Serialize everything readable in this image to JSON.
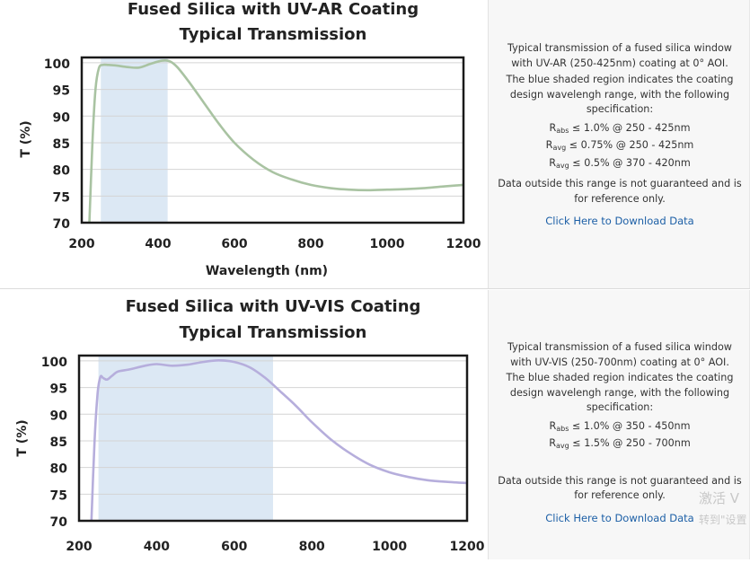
{
  "colors": {
    "curve1": "#a9c3a2",
    "curve2": "#b6aedc",
    "shade": "#dce8f4",
    "grid": "#d4d4d4",
    "link": "#1c5fa6"
  },
  "chart_data": [
    {
      "type": "line",
      "title": "Fused Silica with UV-AR Coating",
      "subtitle": "Typical Transmission",
      "xlabel": "Wavelength (nm)",
      "ylabel": "T (%)",
      "xlim": [
        200,
        1200
      ],
      "ylim": [
        70,
        101
      ],
      "xticks": [
        "200",
        "400",
        "600",
        "800",
        "1000",
        "1200"
      ],
      "yticks": [
        "70",
        "75",
        "80",
        "85",
        "90",
        "95",
        "100"
      ],
      "grid": true,
      "shaded_region": [
        250,
        425
      ],
      "series": [
        {
          "x": [
            220,
            228,
            236,
            245,
            255,
            270,
            290,
            320,
            350,
            380,
            410,
            430,
            450,
            480,
            520,
            560,
            600,
            650,
            700,
            750,
            800,
            850,
            900,
            950,
            1000,
            1050,
            1100,
            1150,
            1200
          ],
          "values": [
            70,
            85,
            95,
            99,
            99.6,
            99.6,
            99.5,
            99.2,
            99.1,
            99.8,
            100.4,
            100.3,
            99.2,
            96.5,
            92.5,
            88.5,
            85,
            81.8,
            79.5,
            78.1,
            77.1,
            76.5,
            76.2,
            76.1,
            76.2,
            76.3,
            76.5,
            76.8,
            77.1
          ]
        }
      ]
    },
    {
      "type": "line",
      "title": "Fused Silica with UV-VIS Coating",
      "subtitle": "Typical Transmission",
      "xlabel": "",
      "ylabel": "T (%)",
      "xlim": [
        200,
        1200
      ],
      "ylim": [
        70,
        101
      ],
      "xticks": [
        "200",
        "400",
        "600",
        "800",
        "1000",
        "1200"
      ],
      "yticks": [
        "70",
        "75",
        "80",
        "85",
        "90",
        "95",
        "100"
      ],
      "grid": true,
      "shaded_region": [
        250,
        700
      ],
      "series": [
        {
          "x": [
            232,
            240,
            248,
            255,
            262,
            272,
            285,
            300,
            330,
            370,
            400,
            440,
            480,
            520,
            560,
            600,
            640,
            680,
            720,
            760,
            800,
            850,
            900,
            950,
            1000,
            1050,
            1100,
            1150,
            1200
          ],
          "values": [
            70,
            85,
            94,
            97,
            96.8,
            96.5,
            97.2,
            98,
            98.4,
            99.1,
            99.4,
            99.1,
            99.3,
            99.8,
            100.1,
            99.8,
            98.8,
            96.8,
            94.2,
            91.5,
            88.5,
            85.2,
            82.6,
            80.5,
            79.1,
            78.2,
            77.6,
            77.3,
            77.1
          ]
        }
      ]
    }
  ],
  "info1": {
    "description": "Typical transmission of a fused silica window with UV-AR (250-425nm) coating at 0° AOI.",
    "shade_note": "The blue shaded region indicates the coating design wavelengh range, with the following specification:",
    "specs": [
      {
        "sym": "R",
        "sub": "abs",
        "text": " ≤ 1.0% @ 250 - 425nm"
      },
      {
        "sym": "R",
        "sub": "avg",
        "text": " ≤ 0.75% @ 250 - 425nm"
      },
      {
        "sym": "R",
        "sub": "avg",
        "text": " ≤ 0.5% @ 370 - 420nm"
      }
    ],
    "disclaimer": "Data outside this range is not guaranteed and is for reference only.",
    "download": "Click Here to Download Data"
  },
  "info2": {
    "description": "Typical transmission of a fused silica window with UV-VIS (250-700nm) coating at 0° AOI.",
    "shade_note": "The blue shaded region indicates the coating design wavelengh range, with the following specification:",
    "specs": [
      {
        "sym": "R",
        "sub": "abs",
        "text": " ≤ 1.0% @ 350 - 450nm"
      },
      {
        "sym": "R",
        "sub": "avg",
        "text": " ≤ 1.5% @ 250 - 700nm"
      }
    ],
    "disclaimer": "Data outside this range is not guaranteed and is for reference only.",
    "download": "Click Here to Download Data"
  },
  "watermark": {
    "line1": "激活 V",
    "line2": "转到\"设置"
  }
}
